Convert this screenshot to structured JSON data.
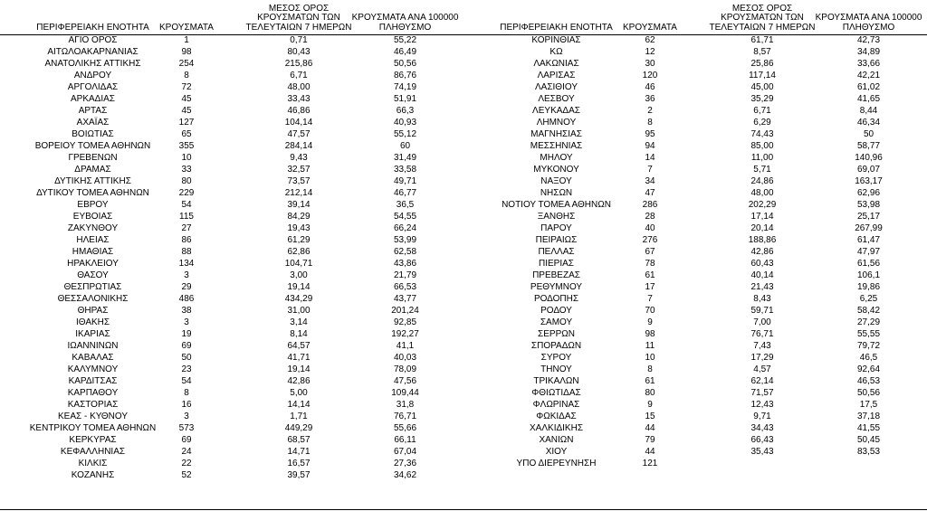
{
  "headers": {
    "region": "ΠΕΡΙΦΕΡΕΙΑΚΗ ΕΝΟΤΗΤΑ",
    "cases": "ΚΡΟΥΣΜΑΤΑ",
    "avg": [
      "ΜΕΣΟΣ ΟΡΟΣ",
      "ΚΡΟΥΣΜΑΤΩΝ ΤΩΝ",
      "ΤΕΛΕΥΤΑΙΩΝ 7 ΗΜΕΡΩΝ"
    ],
    "per100k": [
      "ΚΡΟΥΣΜΑΤΑ ΑΝΑ 100000",
      "ΠΛΗΘΥΣΜΟ"
    ]
  },
  "left_rows": [
    [
      "ΑΓΙΟ ΟΡΟΣ",
      "1",
      "0,71",
      "55,22"
    ],
    [
      "ΑΙΤΩΛΟΑΚΑΡΝΑΝΙΑΣ",
      "98",
      "80,43",
      "46,49"
    ],
    [
      "ΑΝΑΤΟΛΙΚΗΣ ΑΤΤΙΚΗΣ",
      "254",
      "215,86",
      "50,56"
    ],
    [
      "ΑΝΔΡΟΥ",
      "8",
      "6,71",
      "86,76"
    ],
    [
      "ΑΡΓΟΛΙΔΑΣ",
      "72",
      "48,00",
      "74,19"
    ],
    [
      "ΑΡΚΑΔΙΑΣ",
      "45",
      "33,43",
      "51,91"
    ],
    [
      "ΑΡΤΑΣ",
      "45",
      "46,86",
      "66,3"
    ],
    [
      "ΑΧΑΪΑΣ",
      "127",
      "104,14",
      "40,93"
    ],
    [
      "ΒΟΙΩΤΙΑΣ",
      "65",
      "47,57",
      "55,12"
    ],
    [
      "ΒΟΡΕΙΟΥ ΤΟΜΕΑ ΑΘΗΝΩΝ",
      "355",
      "284,14",
      "60"
    ],
    [
      "ΓΡΕΒΕΝΩΝ",
      "10",
      "9,43",
      "31,49"
    ],
    [
      "ΔΡΑΜΑΣ",
      "33",
      "32,57",
      "33,58"
    ],
    [
      "ΔΥΤΙΚΗΣ ΑΤΤΙΚΗΣ",
      "80",
      "73,57",
      "49,71"
    ],
    [
      "ΔΥΤΙΚΟΥ ΤΟΜΕΑ ΑΘΗΝΩΝ",
      "229",
      "212,14",
      "46,77"
    ],
    [
      "ΕΒΡΟΥ",
      "54",
      "39,14",
      "36,5"
    ],
    [
      "ΕΥΒΟΙΑΣ",
      "115",
      "84,29",
      "54,55"
    ],
    [
      "ΖΑΚΥΝΘΟΥ",
      "27",
      "19,43",
      "66,24"
    ],
    [
      "ΗΛΕΙΑΣ",
      "86",
      "61,29",
      "53,99"
    ],
    [
      "ΗΜΑΘΙΑΣ",
      "88",
      "62,86",
      "62,58"
    ],
    [
      "ΗΡΑΚΛΕΙΟΥ",
      "134",
      "104,71",
      "43,86"
    ],
    [
      "ΘΑΣΟΥ",
      "3",
      "3,00",
      "21,79"
    ],
    [
      "ΘΕΣΠΡΩΤΙΑΣ",
      "29",
      "19,14",
      "66,53"
    ],
    [
      "ΘΕΣΣΑΛΟΝΙΚΗΣ",
      "486",
      "434,29",
      "43,77"
    ],
    [
      "ΘΗΡΑΣ",
      "38",
      "31,00",
      "201,24"
    ],
    [
      "ΙΘΑΚΗΣ",
      "3",
      "3,14",
      "92,85"
    ],
    [
      "ΙΚΑΡΙΑΣ",
      "19",
      "8,14",
      "192,27"
    ],
    [
      "ΙΩΑΝΝΙΝΩΝ",
      "69",
      "64,57",
      "41,1"
    ],
    [
      "ΚΑΒΑΛΑΣ",
      "50",
      "41,71",
      "40,03"
    ],
    [
      "ΚΑΛΥΜΝΟΥ",
      "23",
      "19,14",
      "78,09"
    ],
    [
      "ΚΑΡΔΙΤΣΑΣ",
      "54",
      "42,86",
      "47,56"
    ],
    [
      "ΚΑΡΠΑΘΟΥ",
      "8",
      "5,00",
      "109,44"
    ],
    [
      "ΚΑΣΤΟΡΙΑΣ",
      "16",
      "14,14",
      "31,8"
    ],
    [
      "ΚΕΑΣ - ΚΥΘΝΟΥ",
      "3",
      "1,71",
      "76,71"
    ],
    [
      "ΚΕΝΤΡΙΚΟΥ ΤΟΜΕΑ ΑΘΗΝΩΝ",
      "573",
      "449,29",
      "55,66"
    ],
    [
      "ΚΕΡΚΥΡΑΣ",
      "69",
      "68,57",
      "66,11"
    ],
    [
      "ΚΕΦΑΛΛΗΝΙΑΣ",
      "24",
      "14,71",
      "67,04"
    ],
    [
      "ΚΙΛΚΙΣ",
      "22",
      "16,57",
      "27,36"
    ],
    [
      "ΚΟΖΑΝΗΣ",
      "52",
      "39,57",
      "34,62"
    ]
  ],
  "right_rows": [
    [
      "ΚΟΡΙΝΘΙΑΣ",
      "62",
      "61,71",
      "42,73"
    ],
    [
      "ΚΩ",
      "12",
      "8,57",
      "34,89"
    ],
    [
      "ΛΑΚΩΝΙΑΣ",
      "30",
      "25,86",
      "33,66"
    ],
    [
      "ΛΑΡΙΣΑΣ",
      "120",
      "117,14",
      "42,21"
    ],
    [
      "ΛΑΣΙΘΙΟΥ",
      "46",
      "45,00",
      "61,02"
    ],
    [
      "ΛΕΣΒΟΥ",
      "36",
      "35,29",
      "41,65"
    ],
    [
      "ΛΕΥΚΑΔΑΣ",
      "2",
      "6,71",
      "8,44"
    ],
    [
      "ΛΗΜΝΟΥ",
      "8",
      "6,29",
      "46,34"
    ],
    [
      "ΜΑΓΝΗΣΙΑΣ",
      "95",
      "74,43",
      "50"
    ],
    [
      "ΜΕΣΣΗΝΙΑΣ",
      "94",
      "85,00",
      "58,77"
    ],
    [
      "ΜΗΛΟΥ",
      "14",
      "11,00",
      "140,96"
    ],
    [
      "ΜΥΚΟΝΟΥ",
      "7",
      "5,71",
      "69,07"
    ],
    [
      "ΝΑΞΟΥ",
      "34",
      "24,86",
      "163,17"
    ],
    [
      "ΝΗΣΩΝ",
      "47",
      "48,00",
      "62,96"
    ],
    [
      "ΝΟΤΙΟΥ ΤΟΜΕΑ ΑΘΗΝΩΝ",
      "286",
      "202,29",
      "53,98"
    ],
    [
      "ΞΑΝΘΗΣ",
      "28",
      "17,14",
      "25,17"
    ],
    [
      "ΠΑΡΟΥ",
      "40",
      "20,14",
      "267,99"
    ],
    [
      "ΠΕΙΡΑΙΩΣ",
      "276",
      "188,86",
      "61,47"
    ],
    [
      "ΠΕΛΛΑΣ",
      "67",
      "42,86",
      "47,97"
    ],
    [
      "ΠΙΕΡΙΑΣ",
      "78",
      "60,43",
      "61,56"
    ],
    [
      "ΠΡΕΒΕΖΑΣ",
      "61",
      "40,14",
      "106,1"
    ],
    [
      "ΡΕΘΥΜΝΟΥ",
      "17",
      "21,43",
      "19,86"
    ],
    [
      "ΡΟΔΟΠΗΣ",
      "7",
      "8,43",
      "6,25"
    ],
    [
      "ΡΟΔΟΥ",
      "70",
      "59,71",
      "58,42"
    ],
    [
      "ΣΑΜΟΥ",
      "9",
      "7,00",
      "27,29"
    ],
    [
      "ΣΕΡΡΩΝ",
      "98",
      "76,71",
      "55,55"
    ],
    [
      "ΣΠΟΡΑΔΩΝ",
      "11",
      "7,43",
      "79,72"
    ],
    [
      "ΣΥΡΟΥ",
      "10",
      "17,29",
      "46,5"
    ],
    [
      "ΤΗΝΟΥ",
      "8",
      "4,57",
      "92,64"
    ],
    [
      "ΤΡΙΚΑΛΩΝ",
      "61",
      "62,14",
      "46,53"
    ],
    [
      "ΦΘΙΩΤΙΔΑΣ",
      "80",
      "71,57",
      "50,56"
    ],
    [
      "ΦΛΩΡΙΝΑΣ",
      "9",
      "12,43",
      "17,5"
    ],
    [
      "ΦΩΚΙΔΑΣ",
      "15",
      "9,71",
      "37,18"
    ],
    [
      "ΧΑΛΚΙΔΙΚΗΣ",
      "44",
      "34,43",
      "41,55"
    ],
    [
      "ΧΑΝΙΩΝ",
      "79",
      "66,43",
      "50,45"
    ],
    [
      "ΧΙΟΥ",
      "44",
      "35,43",
      "83,53"
    ],
    [
      "ΥΠΟ ΔΙΕΡΕΥΝΗΣΗ",
      "121",
      "",
      ""
    ]
  ]
}
